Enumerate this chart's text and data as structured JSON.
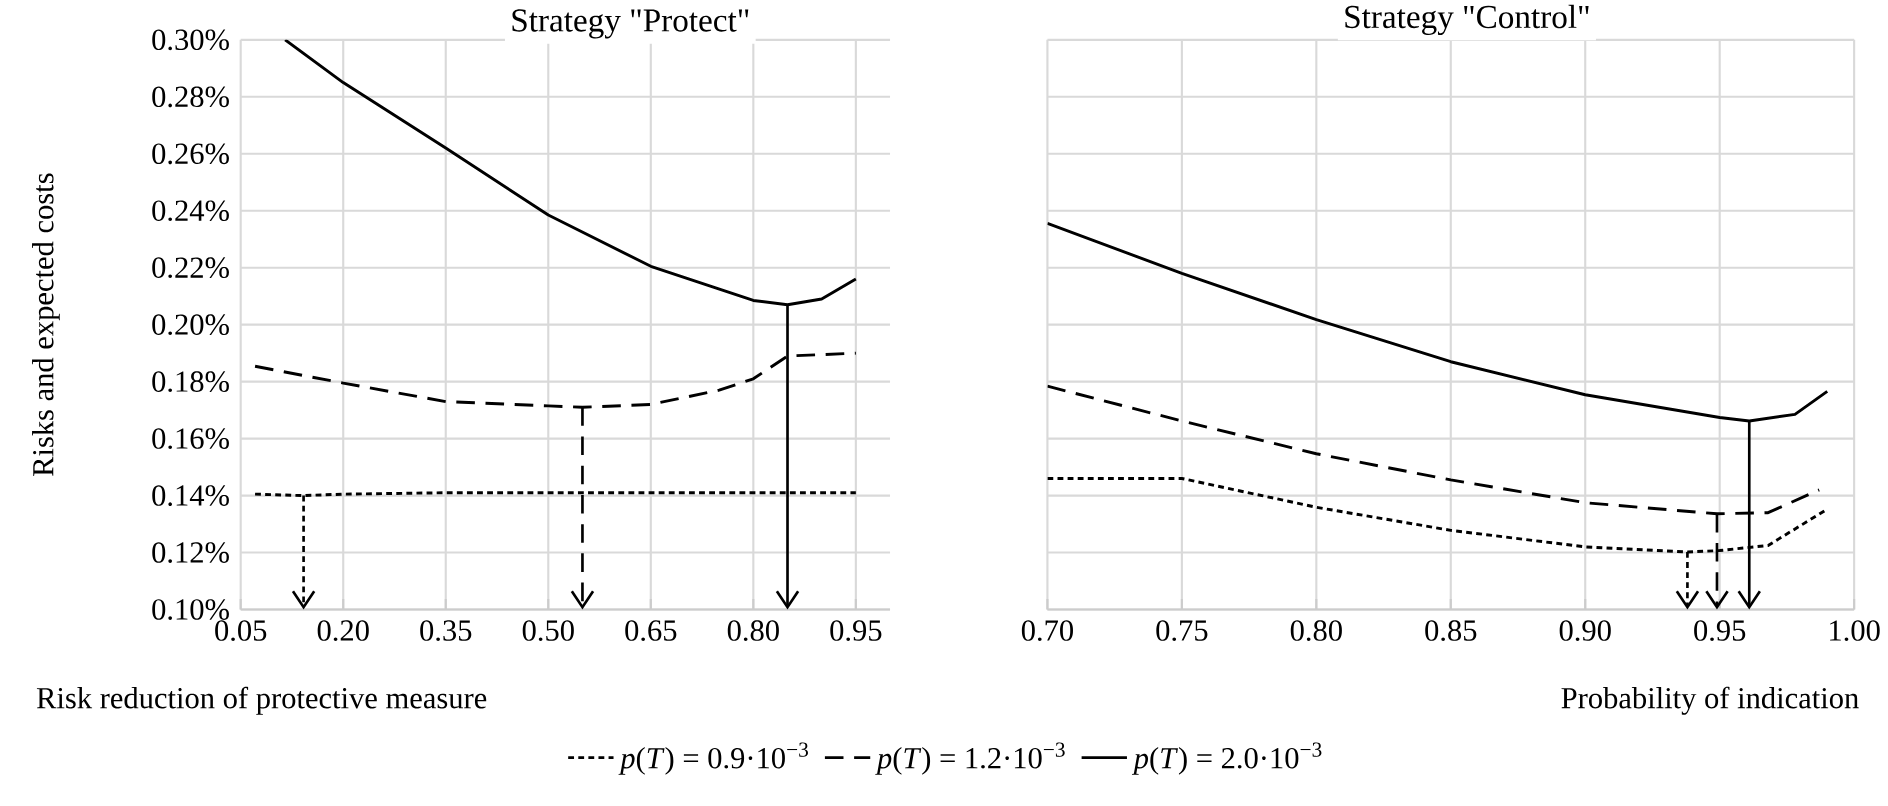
{
  "chart_data": [
    {
      "type": "line",
      "title": "Strategy \"Protect\"",
      "xlabel": "Risk reduction of protective measure",
      "ylabel": "Risks and expected costs",
      "xlim": [
        0.05,
        1.0
      ],
      "xticks": [
        {
          "value": 0.05,
          "label": "0.05"
        },
        {
          "value": 0.2,
          "label": "0.20"
        },
        {
          "value": 0.35,
          "label": "0.35"
        },
        {
          "value": 0.5,
          "label": "0.50"
        },
        {
          "value": 0.65,
          "label": "0.65"
        },
        {
          "value": 0.8,
          "label": "0.80"
        },
        {
          "value": 0.95,
          "label": "0.95"
        }
      ],
      "ylim": [
        0.1,
        0.3
      ],
      "yticks": [
        {
          "value": 0.1,
          "label": "0.10%"
        },
        {
          "value": 0.12,
          "label": "0.12%"
        },
        {
          "value": 0.14,
          "label": "0.14%"
        },
        {
          "value": 0.16,
          "label": "0.16%"
        },
        {
          "value": 0.18,
          "label": "0.18%"
        },
        {
          "value": 0.2,
          "label": "0.20%"
        },
        {
          "value": 0.22,
          "label": "0.22%"
        },
        {
          "value": 0.24,
          "label": "0.24%"
        },
        {
          "value": 0.26,
          "label": "0.26%"
        },
        {
          "value": 0.28,
          "label": "0.28%"
        },
        {
          "value": 0.3,
          "label": "0.30%"
        }
      ],
      "grid": true,
      "legend": "bottom",
      "series": [
        {
          "name": "*p*(*T*) = 0.9·10$^{−3}$",
          "color": "#000000",
          "line_style": "dotted",
          "x": [
            0.071,
            0.142,
            0.2,
            0.35,
            0.5,
            0.65,
            0.8,
            0.95
          ],
          "values": [
            0.1405,
            0.14,
            0.1405,
            0.141,
            0.141,
            0.141,
            0.141,
            0.141
          ]
        },
        {
          "name": "*p*(*T*) = 1.2·10$^{−3}$",
          "color": "#000000",
          "line_style": "dashed",
          "x": [
            0.071,
            0.2,
            0.35,
            0.5,
            0.55,
            0.65,
            0.75,
            0.8,
            0.85,
            0.95
          ],
          "values": [
            0.1854,
            0.1795,
            0.173,
            0.1715,
            0.171,
            0.172,
            0.177,
            0.181,
            0.189,
            0.19
          ]
        },
        {
          "name": "*p*(*T*) = 2.0·10$^{−3}$",
          "color": "#000000",
          "line_style": "solid",
          "x": [
            0.115,
            0.2,
            0.35,
            0.5,
            0.65,
            0.8,
            0.85,
            0.9,
            0.95
          ],
          "values": [
            0.3,
            0.285,
            0.262,
            0.2385,
            0.2205,
            0.2085,
            0.207,
            0.209,
            0.216
          ]
        }
      ]
    },
    {
      "type": "line",
      "title": "Strategy \"Control\"",
      "xlabel": "Probability of indication",
      "xlim": [
        0.7,
        1.0
      ],
      "xticks": [
        {
          "value": 0.7,
          "label": "0.70"
        },
        {
          "value": 0.75,
          "label": "0.75"
        },
        {
          "value": 0.8,
          "label": "0.80"
        },
        {
          "value": 0.85,
          "label": "0.85"
        },
        {
          "value": 0.9,
          "label": "0.90"
        },
        {
          "value": 0.95,
          "label": "0.95"
        },
        {
          "value": 1.0,
          "label": "1.00"
        }
      ],
      "ylim": [
        0.1,
        0.3
      ],
      "yticks": [
        {
          "value": 0.1,
          "label": null
        },
        {
          "value": 0.12,
          "label": null
        },
        {
          "value": 0.14,
          "label": null
        },
        {
          "value": 0.16,
          "label": null
        },
        {
          "value": 0.18,
          "label": null
        },
        {
          "value": 0.2,
          "label": null
        },
        {
          "value": 0.22,
          "label": null
        },
        {
          "value": 0.24,
          "label": null
        },
        {
          "value": 0.26,
          "label": null
        },
        {
          "value": 0.28,
          "label": null
        },
        {
          "value": 0.3,
          "label": null
        }
      ],
      "grid": true,
      "tick_labels": "x",
      "series": [
        {
          "color": "#000000",
          "line_style": "dotted",
          "x": [
            0.7,
            0.75,
            0.8,
            0.85,
            0.9,
            0.938,
            0.95,
            0.968,
            0.99
          ],
          "values": [
            0.146,
            0.146,
            0.1359,
            0.1278,
            0.122,
            0.1202,
            0.1207,
            0.1225,
            0.1352
          ]
        },
        {
          "color": "#000000",
          "line_style": "dashed",
          "x": [
            0.7,
            0.75,
            0.8,
            0.85,
            0.9,
            0.949,
            0.968,
            0.987
          ],
          "values": [
            0.1784,
            0.1662,
            0.1547,
            0.1455,
            0.1375,
            0.1336,
            0.134,
            0.142
          ]
        },
        {
          "color": "#000000",
          "line_style": "solid",
          "x": [
            0.7,
            0.75,
            0.8,
            0.85,
            0.9,
            0.95,
            0.961,
            0.978,
            0.99
          ],
          "values": [
            0.2356,
            0.218,
            0.2018,
            0.187,
            0.1754,
            0.1674,
            0.1662,
            0.1685,
            0.1766
          ]
        }
      ]
    }
  ]
}
